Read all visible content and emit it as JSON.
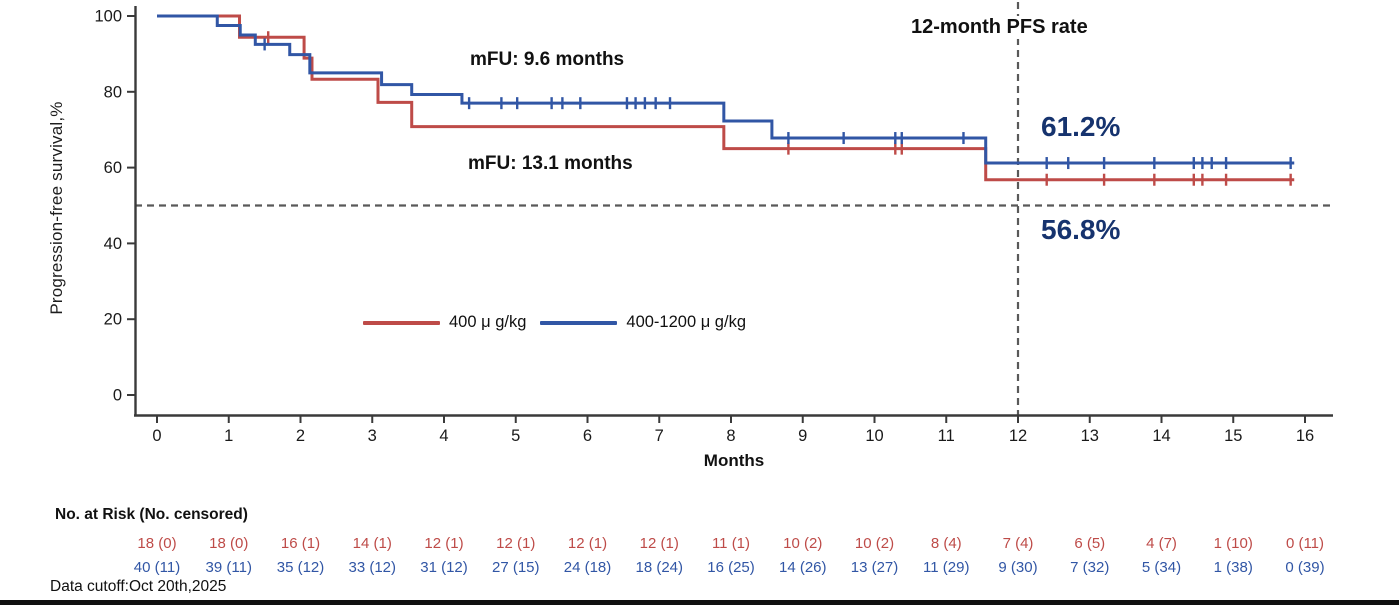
{
  "colors": {
    "red": "#BE4B48",
    "blue": "#3156A5",
    "navy": "#16336E",
    "dashed_gray": "#595959",
    "axis": "#3a3a3a"
  },
  "annotations": {
    "pfs_header": "12-month PFS rate",
    "mfu_top": "mFU: 9.6 months",
    "mfu_bottom": "mFU: 13.1 months",
    "rate_top": "61.2%",
    "rate_bottom": "56.8%"
  },
  "chart_data": {
    "type": "line",
    "subtype": "kaplan-meier-step",
    "xlabel": "Months",
    "ylabel": "Progression-free survival,%",
    "xlim": [
      0,
      16
    ],
    "ylim": [
      0,
      100
    ],
    "x_ticks": [
      0,
      1,
      2,
      3,
      4,
      5,
      6,
      7,
      8,
      9,
      10,
      11,
      12,
      13,
      14,
      15,
      16
    ],
    "y_ticks": [
      0,
      20,
      40,
      60,
      80,
      100
    ],
    "grid": false,
    "legend_position": "inside-lower-center",
    "reference_lines": {
      "horizontal_y": 50,
      "vertical_x": 12,
      "style": "dashed"
    },
    "series": [
      {
        "name": "400 μ g/kg",
        "color": "#BE4B48",
        "median_followup": "mFU: 13.1 months",
        "pfs_12_month_rate": "56.8%",
        "end_x": 15.85,
        "steps": [
          [
            0,
            100
          ],
          [
            1.15,
            94.4
          ],
          [
            2.05,
            88.9
          ],
          [
            2.16,
            83.3
          ],
          [
            3.08,
            77.2
          ],
          [
            3.55,
            70.8
          ],
          [
            7.9,
            65.0
          ],
          [
            11.55,
            56.8
          ]
        ],
        "censors": [
          [
            1.55,
            94.4
          ],
          [
            8.8,
            65.0
          ],
          [
            10.29,
            65.0
          ],
          [
            10.38,
            65.0
          ],
          [
            12.4,
            56.8
          ],
          [
            13.2,
            56.8
          ],
          [
            13.9,
            56.8
          ],
          [
            14.45,
            56.8
          ],
          [
            14.57,
            56.8
          ],
          [
            14.9,
            56.8
          ],
          [
            15.8,
            56.8
          ]
        ]
      },
      {
        "name": "400-1200 μ g/kg",
        "color": "#3156A5",
        "median_followup": "mFU: 9.6 months",
        "pfs_12_month_rate": "61.2%",
        "end_x": 15.85,
        "steps": [
          [
            0,
            100
          ],
          [
            0.84,
            97.5
          ],
          [
            1.16,
            95.0
          ],
          [
            1.37,
            92.5
          ],
          [
            1.85,
            89.8
          ],
          [
            2.13,
            85.0
          ],
          [
            3.13,
            81.9
          ],
          [
            3.55,
            79.3
          ],
          [
            4.25,
            77.0
          ],
          [
            7.9,
            72.3
          ],
          [
            8.57,
            67.8
          ],
          [
            11.55,
            61.2
          ]
        ],
        "censors": [
          [
            1.5,
            92.5
          ],
          [
            4.35,
            77.0
          ],
          [
            4.8,
            77.0
          ],
          [
            5.02,
            77.0
          ],
          [
            5.5,
            77.0
          ],
          [
            5.65,
            77.0
          ],
          [
            5.9,
            77.0
          ],
          [
            6.55,
            77.0
          ],
          [
            6.67,
            77.0
          ],
          [
            6.8,
            77.0
          ],
          [
            6.95,
            77.0
          ],
          [
            7.15,
            77.0
          ],
          [
            8.8,
            67.8
          ],
          [
            9.57,
            67.8
          ],
          [
            10.29,
            67.8
          ],
          [
            10.38,
            67.8
          ],
          [
            11.24,
            67.8
          ],
          [
            12.4,
            61.2
          ],
          [
            12.7,
            61.2
          ],
          [
            13.2,
            61.2
          ],
          [
            13.9,
            61.2
          ],
          [
            14.45,
            61.2
          ],
          [
            14.57,
            61.2
          ],
          [
            14.7,
            61.2
          ],
          [
            14.9,
            61.2
          ],
          [
            15.8,
            61.2
          ]
        ]
      }
    ]
  },
  "risk_table": {
    "header": "No. at Risk (No. censored)",
    "rows": [
      {
        "name": "400 μ g/kg",
        "color": "#BE4B48",
        "values": [
          "18 (0)",
          "18 (0)",
          "16 (1)",
          "14 (1)",
          "12 (1)",
          "12 (1)",
          "12 (1)",
          "12 (1)",
          "11 (1)",
          "10 (2)",
          "10 (2)",
          "8 (4)",
          "7 (4)",
          "6 (5)",
          "4 (7)",
          "1 (10)",
          "0 (11)"
        ]
      },
      {
        "name": "400-1200 μ g/kg",
        "color": "#3156A5",
        "values": [
          "40 (11)",
          "39 (11)",
          "35 (12)",
          "33 (12)",
          "31 (12)",
          "27 (15)",
          "24 (18)",
          "18 (24)",
          "16 (25)",
          "14 (26)",
          "13 (27)",
          "11 (29)",
          "9 (30)",
          "7 (32)",
          "5 (34)",
          "1 (38)",
          "0 (39)"
        ]
      }
    ]
  },
  "footer": {
    "data_cutoff": "Data cutoff:Oct 20th,2025"
  }
}
